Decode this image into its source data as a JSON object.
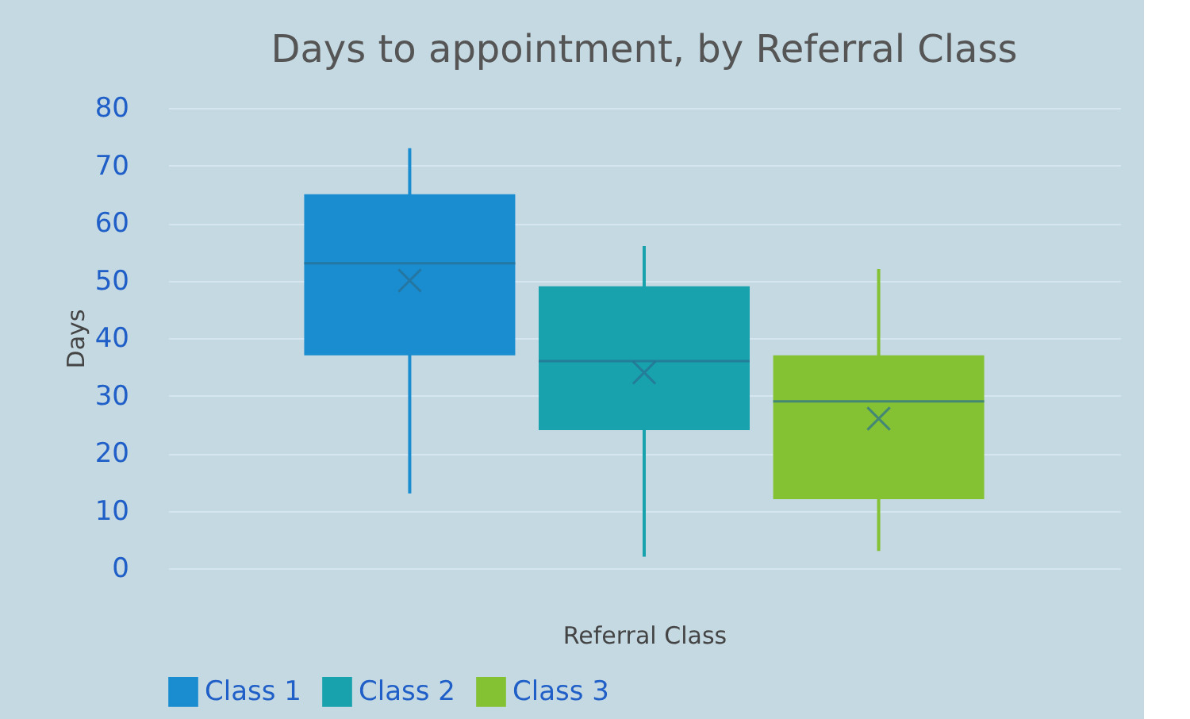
{
  "chart_data": {
    "type": "box",
    "title": "Days to appointment, by Referral Class",
    "xlabel": "Referral Class",
    "ylabel": "Days",
    "categories": [
      null
    ],
    "series": [
      {
        "name": "Class 1",
        "color": "#1a8dd0",
        "boxes": [
          {
            "low": 13,
            "q1": 37,
            "median": 53,
            "q3": 65,
            "high": 73,
            "mean": 50
          }
        ]
      },
      {
        "name": "Class 2",
        "color": "#17a2ae",
        "boxes": [
          {
            "low": 2,
            "q1": 24,
            "median": 36,
            "q3": 49,
            "high": 56,
            "mean": 34
          }
        ]
      },
      {
        "name": "Class 3",
        "color": "#84c234",
        "boxes": [
          {
            "low": 3,
            "q1": 12,
            "median": 29,
            "q3": 37,
            "high": 52,
            "mean": 26
          }
        ]
      }
    ],
    "ylim": [
      0,
      80
    ],
    "yticks": [
      0,
      10,
      20,
      30,
      40,
      50,
      60,
      70,
      80
    ],
    "grid": "y",
    "legend": "bottom",
    "tick_labels": "y"
  }
}
